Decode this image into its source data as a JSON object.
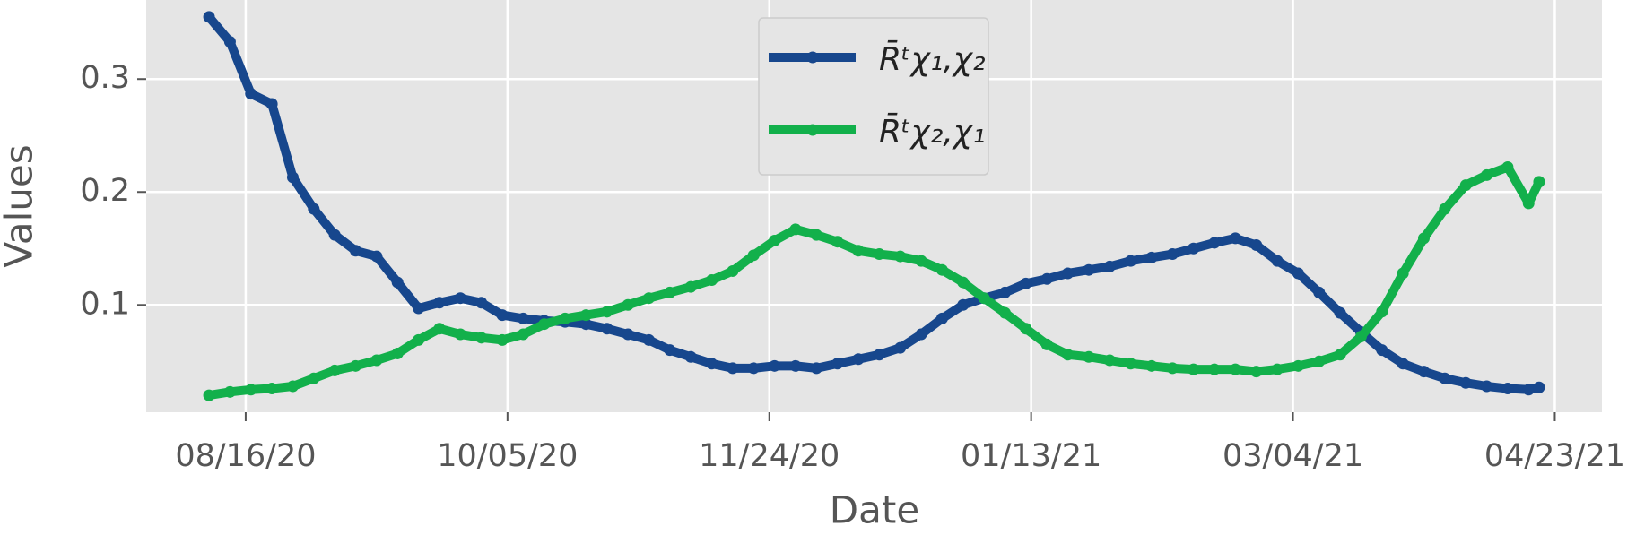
{
  "chart_data": {
    "type": "line",
    "x_label": "Date",
    "y_label": "Values",
    "x": [
      "08/09/20",
      "08/13/20",
      "08/17/20",
      "08/21/20",
      "08/25/20",
      "08/29/20",
      "09/02/20",
      "09/06/20",
      "09/10/20",
      "09/14/20",
      "09/18/20",
      "09/22/20",
      "09/26/20",
      "09/30/20",
      "10/04/20",
      "10/08/20",
      "10/12/20",
      "10/16/20",
      "10/20/20",
      "10/24/20",
      "10/28/20",
      "11/01/20",
      "11/05/20",
      "11/09/20",
      "11/13/20",
      "11/17/20",
      "11/21/20",
      "11/25/20",
      "11/29/20",
      "12/03/20",
      "12/07/20",
      "12/11/20",
      "12/15/20",
      "12/19/20",
      "12/23/20",
      "12/27/20",
      "12/31/20",
      "01/04/21",
      "01/08/21",
      "01/12/21",
      "01/16/21",
      "01/20/21",
      "01/24/21",
      "01/28/21",
      "02/01/21",
      "02/05/21",
      "02/09/21",
      "02/13/21",
      "02/17/21",
      "02/21/21",
      "02/25/21",
      "03/01/21",
      "03/05/21",
      "03/09/21",
      "03/13/21",
      "03/17/21",
      "03/21/21",
      "03/25/21",
      "03/29/21",
      "04/02/21",
      "04/06/21",
      "04/10/21",
      "04/14/21",
      "04/18/21",
      "04/20/21"
    ],
    "series": [
      {
        "name": "R̄ᵗχ₁,χ₂",
        "color": "#17478d",
        "values": [
          0.355,
          0.333,
          0.287,
          0.278,
          0.213,
          0.185,
          0.162,
          0.148,
          0.143,
          0.12,
          0.097,
          0.102,
          0.106,
          0.102,
          0.091,
          0.088,
          0.086,
          0.085,
          0.083,
          0.079,
          0.074,
          0.069,
          0.06,
          0.054,
          0.048,
          0.044,
          0.044,
          0.046,
          0.046,
          0.044,
          0.048,
          0.052,
          0.056,
          0.062,
          0.074,
          0.088,
          0.1,
          0.106,
          0.111,
          0.119,
          0.123,
          0.128,
          0.131,
          0.134,
          0.139,
          0.142,
          0.145,
          0.15,
          0.155,
          0.159,
          0.153,
          0.139,
          0.128,
          0.111,
          0.093,
          0.076,
          0.06,
          0.048,
          0.041,
          0.035,
          0.031,
          0.028,
          0.026,
          0.025,
          0.027
        ]
      },
      {
        "name": "R̄ᵗχ₂,χ₁",
        "color": "#12b04b",
        "values": [
          0.02,
          0.023,
          0.025,
          0.026,
          0.028,
          0.035,
          0.042,
          0.046,
          0.051,
          0.057,
          0.069,
          0.079,
          0.074,
          0.071,
          0.069,
          0.074,
          0.083,
          0.088,
          0.091,
          0.094,
          0.1,
          0.106,
          0.111,
          0.116,
          0.122,
          0.13,
          0.144,
          0.157,
          0.167,
          0.162,
          0.156,
          0.148,
          0.145,
          0.143,
          0.139,
          0.131,
          0.12,
          0.106,
          0.093,
          0.079,
          0.065,
          0.056,
          0.054,
          0.051,
          0.048,
          0.046,
          0.044,
          0.043,
          0.043,
          0.043,
          0.041,
          0.043,
          0.046,
          0.05,
          0.056,
          0.072,
          0.094,
          0.128,
          0.159,
          0.185,
          0.206,
          0.215,
          0.222,
          0.19,
          0.209
        ]
      }
    ],
    "xlim": [
      "07/28/20",
      "05/02/21"
    ],
    "xticks": [
      "08/16/20",
      "10/05/20",
      "11/24/20",
      "01/13/21",
      "03/04/21",
      "04/23/21"
    ],
    "ylim": [
      0.005,
      0.37
    ],
    "yticks": [
      0.1,
      0.2,
      0.3
    ],
    "grid": true,
    "legend": "upper center"
  }
}
